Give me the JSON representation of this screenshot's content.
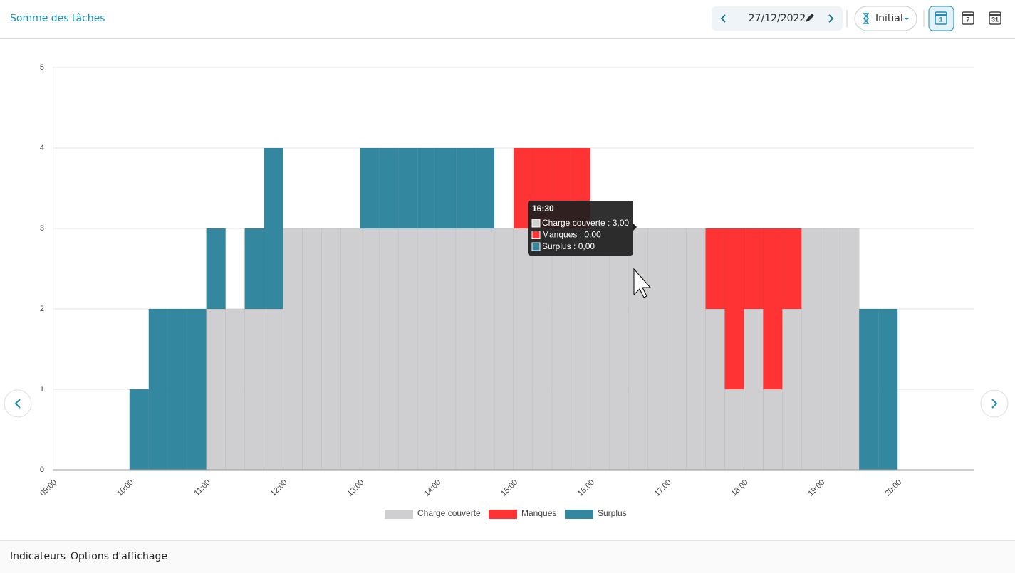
{
  "header": {
    "title": "Somme des tâches",
    "date": "27/12/2022",
    "scenario": "Initial",
    "calendar_icons": [
      "1",
      "7",
      "31"
    ]
  },
  "chart_data": {
    "type": "stacked-bar",
    "categories": [
      "09:00",
      null,
      null,
      null,
      "10:00",
      null,
      null,
      null,
      "11:00",
      null,
      null,
      null,
      "12:00",
      null,
      null,
      null,
      "13:00",
      null,
      null,
      null,
      "14:00",
      null,
      null,
      null,
      "15:00",
      null,
      null,
      null,
      "16:00",
      null,
      null,
      null,
      "17:00",
      null,
      null,
      null,
      "18:00",
      null,
      null,
      null,
      "19:00",
      null,
      null,
      null,
      "20:00",
      null,
      null,
      null
    ],
    "series": [
      {
        "name": "Charge couverte",
        "color": "#cfcfd1",
        "values": [
          0,
          0,
          0,
          0,
          0,
          0,
          0,
          0,
          2,
          2,
          2,
          2,
          3,
          3,
          3,
          3,
          3,
          3,
          3,
          3,
          3,
          3,
          3,
          3,
          3,
          3,
          3,
          3,
          3,
          3,
          3,
          3,
          3,
          3,
          2,
          1,
          2,
          1,
          2,
          3,
          3,
          3,
          0,
          0,
          0,
          0,
          0,
          0
        ]
      },
      {
        "name": "Manques",
        "color": "#ff3333",
        "values": [
          0,
          0,
          0,
          0,
          0,
          0,
          0,
          0,
          0,
          0,
          0,
          0,
          0,
          0,
          0,
          0,
          0,
          0,
          0,
          0,
          0,
          0,
          0,
          0,
          1,
          1,
          1,
          1,
          0,
          0,
          0,
          0,
          0,
          0,
          1,
          2,
          1,
          2,
          1,
          0,
          0,
          0,
          0,
          0,
          0,
          0,
          0,
          0
        ]
      },
      {
        "name": "Surplus",
        "color": "#33879e",
        "values": [
          0,
          0,
          0,
          0,
          1,
          2,
          2,
          2,
          1,
          0,
          1,
          2,
          0,
          0,
          0,
          0,
          1,
          1,
          1,
          1,
          1,
          1,
          1,
          0,
          0,
          0,
          0,
          0,
          0,
          0,
          0,
          0,
          0,
          0,
          0,
          0,
          0,
          0,
          0,
          0,
          0,
          0,
          2,
          2,
          0,
          0,
          0,
          0
        ]
      }
    ],
    "ylim": [
      0,
      5
    ],
    "yticks": [
      0,
      1,
      2,
      3,
      4,
      5
    ],
    "grid": true,
    "legend": "bottom"
  },
  "tooltip": {
    "title": "16:30",
    "lines": [
      "Charge couverte : 3,00",
      "Manques : 0,00",
      "Surplus : 0,00"
    ]
  },
  "footer": {
    "tabs": [
      "Indicateurs",
      "Options d'affichage"
    ]
  }
}
